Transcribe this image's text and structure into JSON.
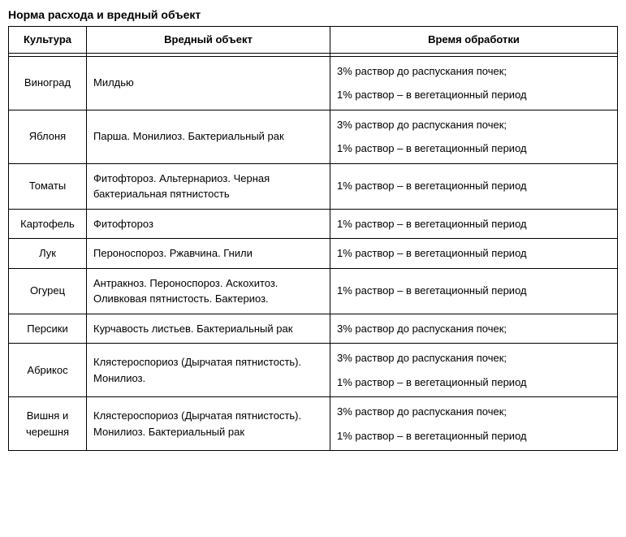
{
  "title": "Норма расхода и вредный объект",
  "columns": [
    "Культура",
    "Вредный объект",
    "Время обработки"
  ],
  "rows": [
    {
      "culture": "Виноград",
      "pest": "Милдью",
      "treatment": [
        "3% раствор до распускания почек;",
        "1% раствор – в вегетационный период"
      ]
    },
    {
      "culture": "Яблоня",
      "pest": "Парша. Монилиоз. Бактериальный рак",
      "treatment": [
        "3% раствор до распускания почек;",
        "1% раствор – в вегетационный период"
      ]
    },
    {
      "culture": "Томаты",
      "pest": "Фитофтороз. Альтернариоз. Черная бактериальная пятнистость",
      "treatment": [
        "1% раствор – в вегетационный период"
      ]
    },
    {
      "culture": "Картофель",
      "pest": "Фитофтороз",
      "treatment": [
        "1% раствор – в вегетационный период"
      ]
    },
    {
      "culture": "Лук",
      "pest": "Пероноспороз. Ржавчина.  Гнили",
      "treatment": [
        "1% раствор – в вегетационный период"
      ]
    },
    {
      "culture": "Огурец",
      "pest": "Антракноз. Пероноспороз. Аскохитоз. Оливковая пятнистость. Бактериоз.",
      "treatment": [
        "1% раствор – в вегетационный период"
      ]
    },
    {
      "culture": "Персики",
      "pest": "Курчавость листьев. Бактериальный  рак",
      "treatment": [
        "3% раствор до распускания почек;"
      ]
    },
    {
      "culture": "Абрикос",
      "pest": " Клястероспориоз (Дырчатая пятнистость). Монилиоз.",
      "treatment": [
        "3% раствор до распускания почек;",
        "1% раствор – в вегетационный период"
      ]
    },
    {
      "culture": "Вишня и черешня",
      "pest": "Клястероспориоз (Дырчатая пятнистость). Монилиоз. Бактериальный  рак",
      "treatment": [
        "3% раствор до распускания почек;",
        "1% раствор – в вегетационный период"
      ]
    }
  ]
}
